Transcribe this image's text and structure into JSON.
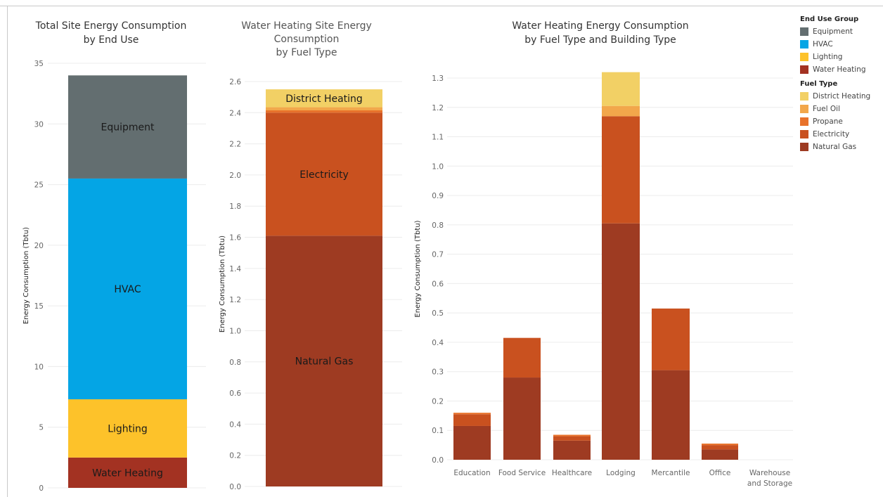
{
  "chart_data": [
    {
      "type": "bar",
      "stacked": true,
      "title": [
        "Total Site Energy Consumption",
        "by End Use"
      ],
      "xlabel": "",
      "ylabel": "Energy Consumption (Tbtu)",
      "ylim": [
        0,
        35
      ],
      "yticks": [
        0,
        5,
        10,
        15,
        20,
        25,
        30,
        35
      ],
      "grid": true,
      "categories": [
        ""
      ],
      "series": [
        {
          "name": "Water Heating",
          "values": [
            2.5
          ],
          "color": "#a33222"
        },
        {
          "name": "Lighting",
          "values": [
            4.8
          ],
          "color": "#fdc22a"
        },
        {
          "name": "HVAC",
          "values": [
            18.2
          ],
          "color": "#04a5e5"
        },
        {
          "name": "Equipment",
          "values": [
            8.5
          ],
          "color": "#636e70"
        }
      ]
    },
    {
      "type": "bar",
      "stacked": true,
      "title": [
        "Water Heating Site Energy",
        "Consumption",
        "by Fuel Type"
      ],
      "xlabel": "",
      "ylabel": "Energy Consumption (Tbtu)",
      "ylim": [
        0,
        2.6
      ],
      "yticks": [
        "0.0",
        "0.2",
        "0.4",
        "0.6",
        "0.8",
        "1.0",
        "1.2",
        "1.4",
        "1.6",
        "1.8",
        "2.0",
        "2.2",
        "2.4",
        "2.6"
      ],
      "grid": true,
      "categories": [
        ""
      ],
      "series": [
        {
          "name": "Natural Gas",
          "values": [
            1.61
          ],
          "color": "#9e3b22",
          "label": "Natural Gas"
        },
        {
          "name": "Electricity",
          "values": [
            0.79
          ],
          "color": "#c9511f",
          "label": "Electricity"
        },
        {
          "name": "Propane",
          "values": [
            0.015
          ],
          "color": "#e8722b",
          "label": ""
        },
        {
          "name": "Fuel Oil",
          "values": [
            0.02
          ],
          "color": "#f2a74b",
          "label": ""
        },
        {
          "name": "District Heating",
          "values": [
            0.115
          ],
          "color": "#f2d065",
          "label": "District Heating"
        }
      ]
    },
    {
      "type": "bar",
      "stacked": true,
      "title": [
        "Water Heating Energy Consumption",
        "by Fuel Type and Building Type"
      ],
      "xlabel": "",
      "ylabel": "Energy Consumption (Tbtu)",
      "ylim": [
        0,
        1.3
      ],
      "yticks": [
        "0.0",
        "0.1",
        "0.2",
        "0.3",
        "0.4",
        "0.5",
        "0.6",
        "0.7",
        "0.8",
        "0.9",
        "1.0",
        "1.1",
        "1.2",
        "1.3"
      ],
      "grid": true,
      "categories": [
        [
          "Education"
        ],
        [
          "Food Service"
        ],
        [
          "Healthcare"
        ],
        [
          "Lodging"
        ],
        [
          "Mercantile"
        ],
        [
          "Office"
        ],
        [
          "Warehouse",
          "and Storage"
        ]
      ],
      "series": [
        {
          "name": "Natural Gas",
          "color": "#9e3b22",
          "values": [
            0.115,
            0.28,
            0.065,
            0.805,
            0.305,
            0.035,
            0
          ]
        },
        {
          "name": "Electricity",
          "color": "#c9511f",
          "values": [
            0.04,
            0.135,
            0.015,
            0.365,
            0.21,
            0.015,
            0
          ]
        },
        {
          "name": "Propane",
          "color": "#e8722b",
          "values": [
            0.005,
            0,
            0.005,
            0,
            0,
            0.005,
            0
          ]
        },
        {
          "name": "Fuel Oil",
          "color": "#f2a74b",
          "values": [
            0,
            0,
            0,
            0.035,
            0,
            0,
            0
          ]
        },
        {
          "name": "District Heating",
          "color": "#f2d065",
          "values": [
            0,
            0,
            0,
            0.115,
            0,
            0,
            0
          ]
        }
      ]
    }
  ],
  "legend": {
    "end_use": {
      "title": "End Use Group",
      "items": [
        {
          "label": "Equipment",
          "color": "#636e70"
        },
        {
          "label": "HVAC",
          "color": "#04a5e5"
        },
        {
          "label": "Lighting",
          "color": "#fdc22a"
        },
        {
          "label": "Water Heating",
          "color": "#a33222"
        }
      ]
    },
    "fuel": {
      "title": "Fuel Type",
      "items": [
        {
          "label": "District Heating",
          "color": "#f2d065"
        },
        {
          "label": "Fuel Oil",
          "color": "#f2a74b"
        },
        {
          "label": "Propane",
          "color": "#e8722b"
        },
        {
          "label": "Electricity",
          "color": "#c9511f"
        },
        {
          "label": "Natural Gas",
          "color": "#9e3b22"
        }
      ]
    }
  }
}
